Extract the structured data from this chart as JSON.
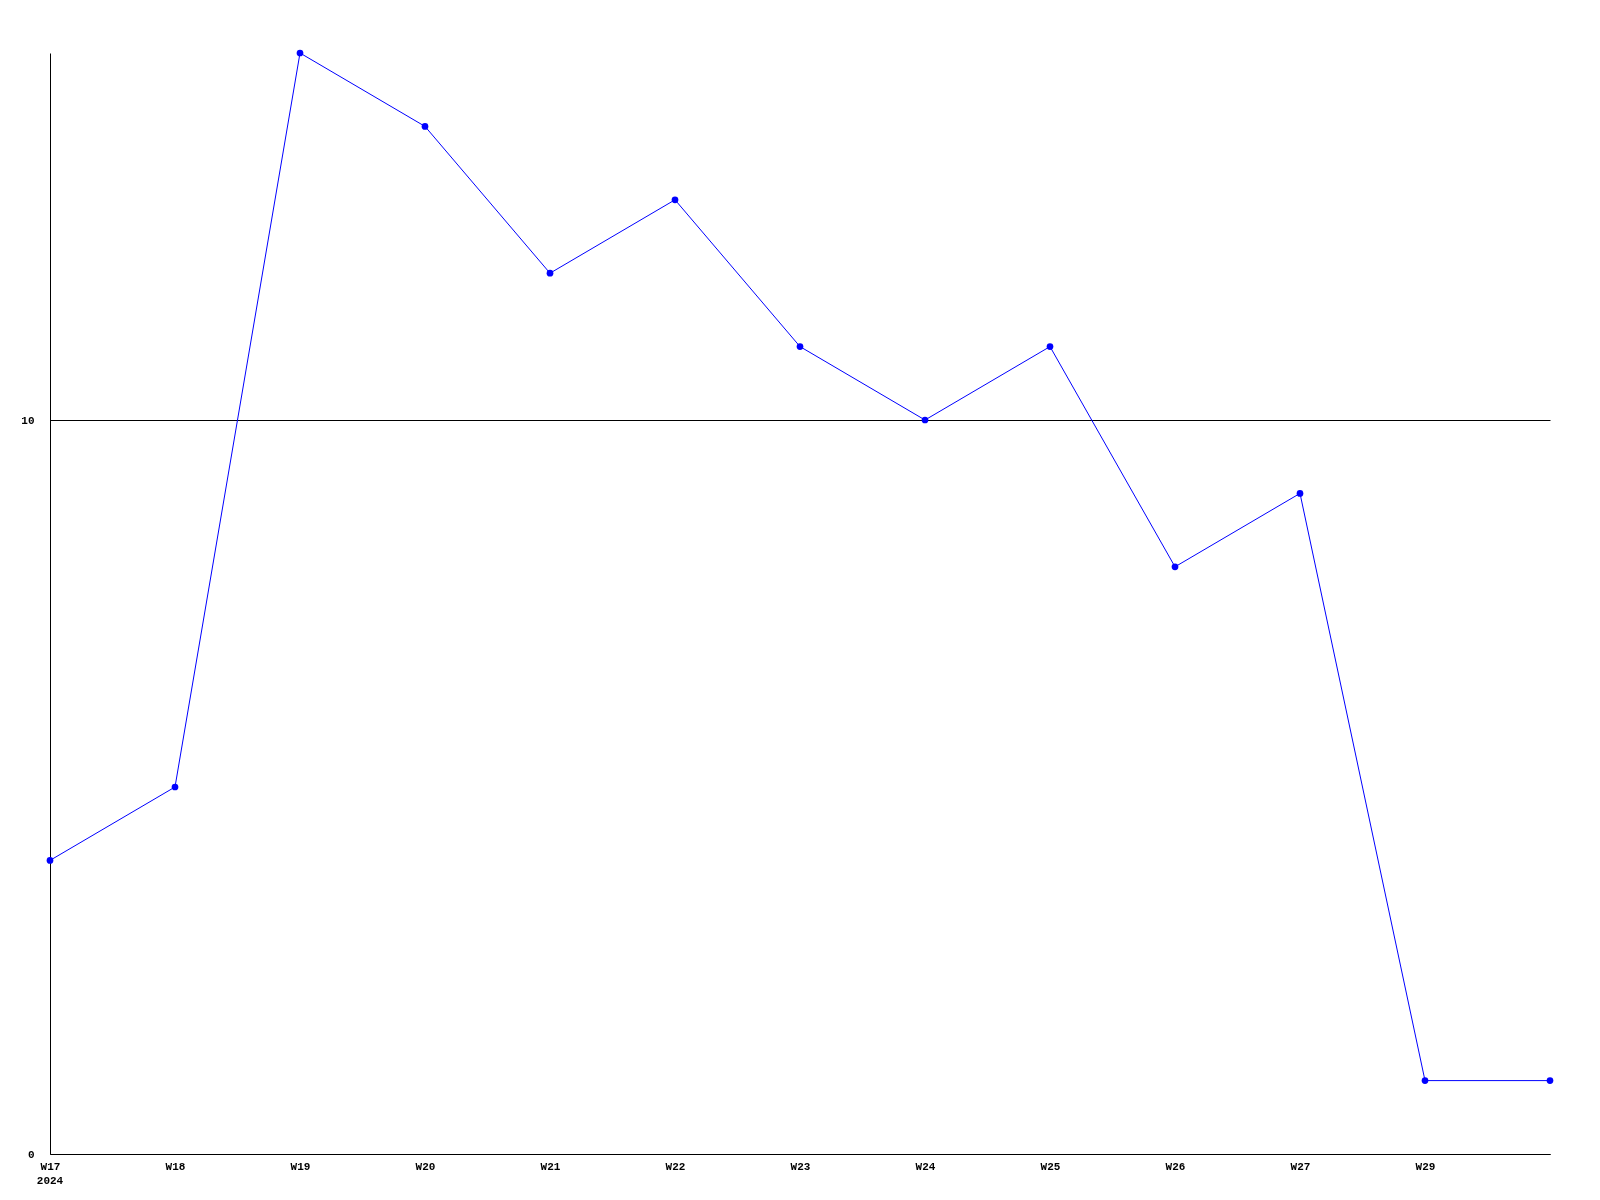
{
  "chart_data": {
    "type": "line",
    "categories": [
      "W17",
      "W18",
      "W19",
      "W20",
      "W21",
      "W22",
      "W23",
      "W24",
      "W25",
      "W26",
      "W27",
      "W29",
      null
    ],
    "series": [
      {
        "color": "#0000ff",
        "values": [
          4,
          5,
          15,
          14,
          12,
          13,
          11,
          10,
          11,
          8,
          9,
          1,
          1
        ]
      }
    ],
    "ylim": [
      0,
      15
    ],
    "yticks": [
      0,
      10
    ],
    "grid": "y",
    "marker": "circle",
    "line_style": "solid",
    "annotations": [
      "2024"
    ]
  }
}
